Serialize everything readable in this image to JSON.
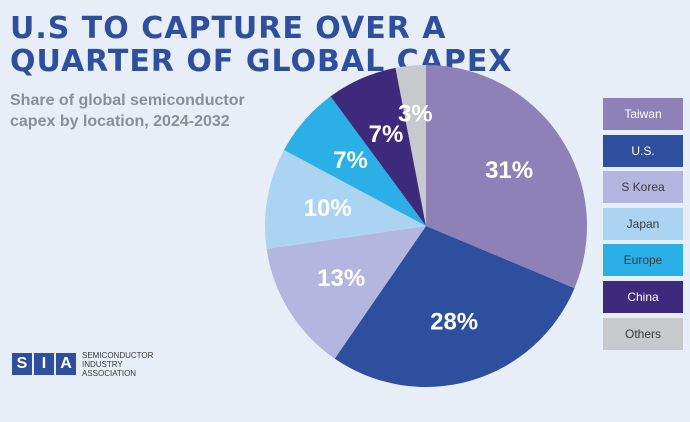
{
  "title": "U.S TO CAPTURE OVER A QUARTER OF GLOBAL CAPEX",
  "subtitle": "Share of global semiconductor capex by location, 2024-2032",
  "logo": {
    "letters": [
      "S",
      "I",
      "A"
    ],
    "line1": "SEMICONDUCTOR",
    "line2": "INDUSTRY",
    "line3": "ASSOCIATION"
  },
  "chart_data": {
    "type": "pie",
    "title": "U.S TO CAPTURE OVER A QUARTER OF GLOBAL CAPEX",
    "subtitle": "Share of global semiconductor capex by location, 2024-2032",
    "categories": [
      "Taiwan",
      "U.S.",
      "S Korea",
      "Japan",
      "Europe",
      "China",
      "Others"
    ],
    "values": [
      31,
      28,
      13,
      10,
      7,
      7,
      3
    ],
    "labels": [
      "31%",
      "28%",
      "13%",
      "10%",
      "7%",
      "7%",
      "3%"
    ],
    "colors": [
      "#8d81b8",
      "#2e4f9e",
      "#b3b6de",
      "#abd4f2",
      "#2ab0e6",
      "#3d2a7d",
      "#c8c9cc"
    ],
    "label_colors": [
      "#ffffff",
      "#ffffff",
      "#ffffff",
      "#ffffff",
      "#ffffff",
      "#ffffff",
      "#ffffff"
    ],
    "legend_text_colors": [
      "#ffffff",
      "#ffffff",
      "#3a3a3a",
      "#3a3a3a",
      "#3a3a3a",
      "#ffffff",
      "#3a3a3a"
    ],
    "legend_position": "right"
  }
}
